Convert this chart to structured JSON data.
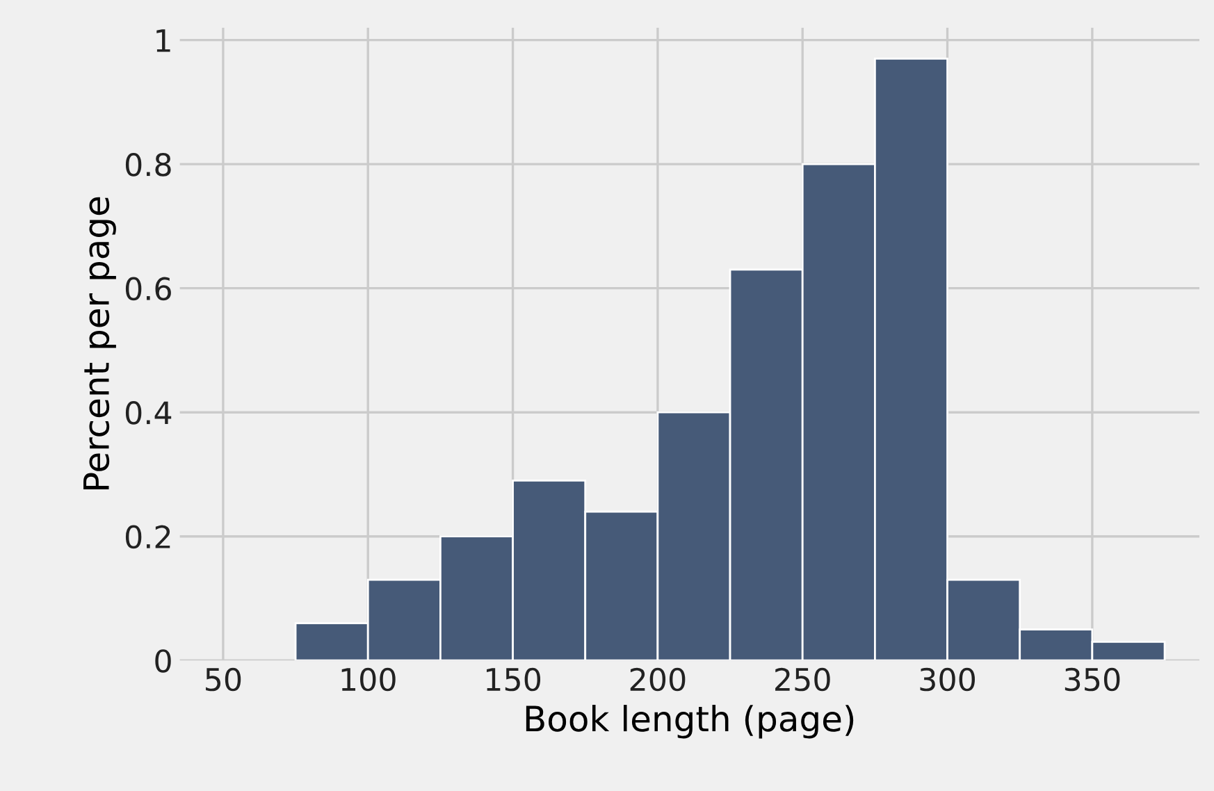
{
  "chart_data": {
    "type": "histogram",
    "xlabel": "Book length (page)",
    "ylabel": "Percent per page",
    "bins": [
      75,
      100,
      125,
      150,
      175,
      200,
      225,
      250,
      275,
      300,
      325,
      350,
      375
    ],
    "values": [
      0.06,
      0.13,
      0.2,
      0.29,
      0.24,
      0.4,
      0.63,
      0.8,
      0.97,
      0.13,
      0.05,
      0.03
    ],
    "color": "#465a78",
    "xlim": [
      35,
      387
    ],
    "ylim": [
      0,
      1.02
    ],
    "xticks": [
      50,
      100,
      150,
      200,
      250,
      300,
      350
    ],
    "yticks": [
      0,
      0.2,
      0.4,
      0.6,
      0.8,
      1
    ],
    "grid": true
  }
}
